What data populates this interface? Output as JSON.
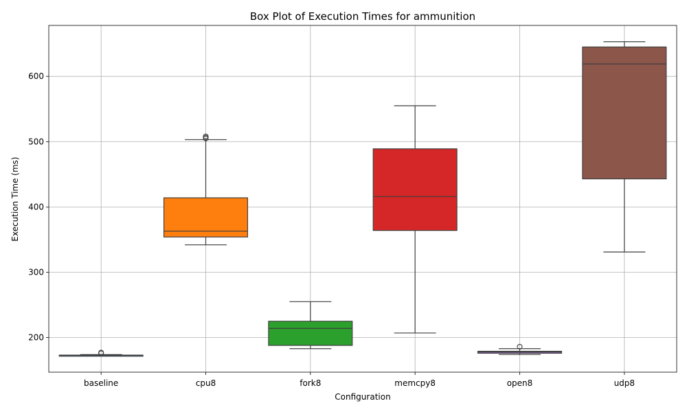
{
  "chart_data": {
    "type": "box",
    "title": "Box Plot of Execution Times for ammunition",
    "xlabel": "Configuration",
    "ylabel": "Execution Time (ms)",
    "ylim": [
      147,
      678
    ],
    "yticks": [
      200,
      300,
      400,
      500,
      600
    ],
    "grid": true,
    "legend": "none",
    "categories": [
      "baseline",
      "cpu8",
      "fork8",
      "memcpy8",
      "open8",
      "udp8"
    ],
    "boxes": [
      {
        "category": "baseline",
        "color": "#1f77b4",
        "whisker_low": 172,
        "q1": 172,
        "median": 173,
        "q3": 173,
        "whisker_high": 174,
        "outliers": [
          176,
          177
        ]
      },
      {
        "category": "cpu8",
        "color": "#ff7f0e",
        "whisker_low": 342,
        "q1": 354,
        "median": 363,
        "q3": 414,
        "whisker_high": 503,
        "outliers": [
          505,
          506,
          508
        ]
      },
      {
        "category": "fork8",
        "color": "#2ca02c",
        "whisker_low": 183,
        "q1": 188,
        "median": 214,
        "q3": 225,
        "whisker_high": 255,
        "outliers": []
      },
      {
        "category": "memcpy8",
        "color": "#d62728",
        "whisker_low": 207,
        "q1": 364,
        "median": 416,
        "q3": 489,
        "whisker_high": 555,
        "outliers": []
      },
      {
        "category": "open8",
        "color": "#9467bd",
        "whisker_low": 174,
        "q1": 176,
        "median": 178,
        "q3": 179,
        "whisker_high": 183,
        "outliers": [
          186
        ]
      },
      {
        "category": "udp8",
        "color": "#8c564b",
        "whisker_low": 331,
        "q1": 443,
        "median": 619,
        "q3": 645,
        "whisker_high": 653,
        "outliers": []
      }
    ]
  }
}
